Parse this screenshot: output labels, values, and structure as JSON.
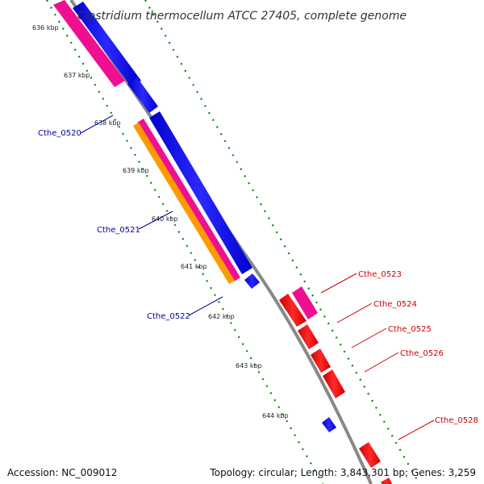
{
  "title": "Clostridium thermocellum ATCC 27405, complete genome",
  "ticks": [
    "636 kbp",
    "637 kbp",
    "638 kbp",
    "639 kbp",
    "640 kbp",
    "641 kbp",
    "642 kbp",
    "643 kbp",
    "644 kbp"
  ],
  "genes_left": [
    "Cthe_0520",
    "Cthe_0521",
    "Cthe_0522"
  ],
  "genes_right": [
    "Cthe_0523",
    "Cthe_0524",
    "Cthe_0525",
    "Cthe_0526",
    "Cthe_0528"
  ],
  "footer": {
    "accession": "Accession: NC_009012",
    "topology": "Topology: circular; Length: 3,843,301 bp; Genes: 3,259"
  },
  "colors": {
    "backbone": "#888888",
    "forward_gene": "#0000ee",
    "rrna_magenta": "#ee1090",
    "orange": "#ff9900",
    "reverse_gene": "#ff0000",
    "left_label": "#000099",
    "right_label": "#cc0000",
    "dotted_track": "#008800"
  }
}
